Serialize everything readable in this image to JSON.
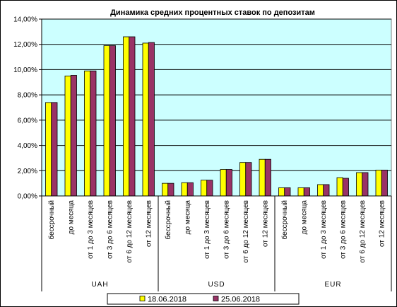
{
  "chart_data": {
    "type": "bar",
    "title": "Динамика средних процентных ставок по депозитам",
    "xlabel": "",
    "ylabel": "",
    "ylim": [
      0,
      14
    ],
    "y_ticks": [
      "0,00%",
      "2,00%",
      "4,00%",
      "6,00%",
      "8,00%",
      "10,00%",
      "12,00%",
      "14,00%"
    ],
    "y_tick_values": [
      0,
      2,
      4,
      6,
      8,
      10,
      12,
      14
    ],
    "grid": true,
    "legend_position": "bottom",
    "categories": [
      "бессрочный",
      "до месяца",
      "от 1 до 3 месяцев",
      "от 3 до 6 месяцев",
      "от 6 до 12 месяцев",
      "от 12 месяцев"
    ],
    "groups": [
      "UAH",
      "USD",
      "EUR"
    ],
    "group_labels": [
      "UAH",
      "USD",
      "EUR"
    ],
    "series": [
      {
        "name": "18.06.2018",
        "color": "#FFFF00",
        "values": [
          [
            7.4,
            9.5,
            9.9,
            11.9,
            12.6,
            12.1
          ],
          [
            1.0,
            1.05,
            1.25,
            2.1,
            2.65,
            2.9
          ],
          [
            0.65,
            0.65,
            0.9,
            1.45,
            1.85,
            2.05
          ]
        ]
      },
      {
        "name": "25.06.2018",
        "color": "#993366",
        "values": [
          [
            7.4,
            9.55,
            9.9,
            11.9,
            12.6,
            12.15
          ],
          [
            1.0,
            1.05,
            1.25,
            2.1,
            2.65,
            2.9
          ],
          [
            0.65,
            0.65,
            0.9,
            1.4,
            1.85,
            2.05
          ]
        ]
      }
    ],
    "plot_background": "#CCFFFF",
    "gridline_color": "#000000"
  }
}
